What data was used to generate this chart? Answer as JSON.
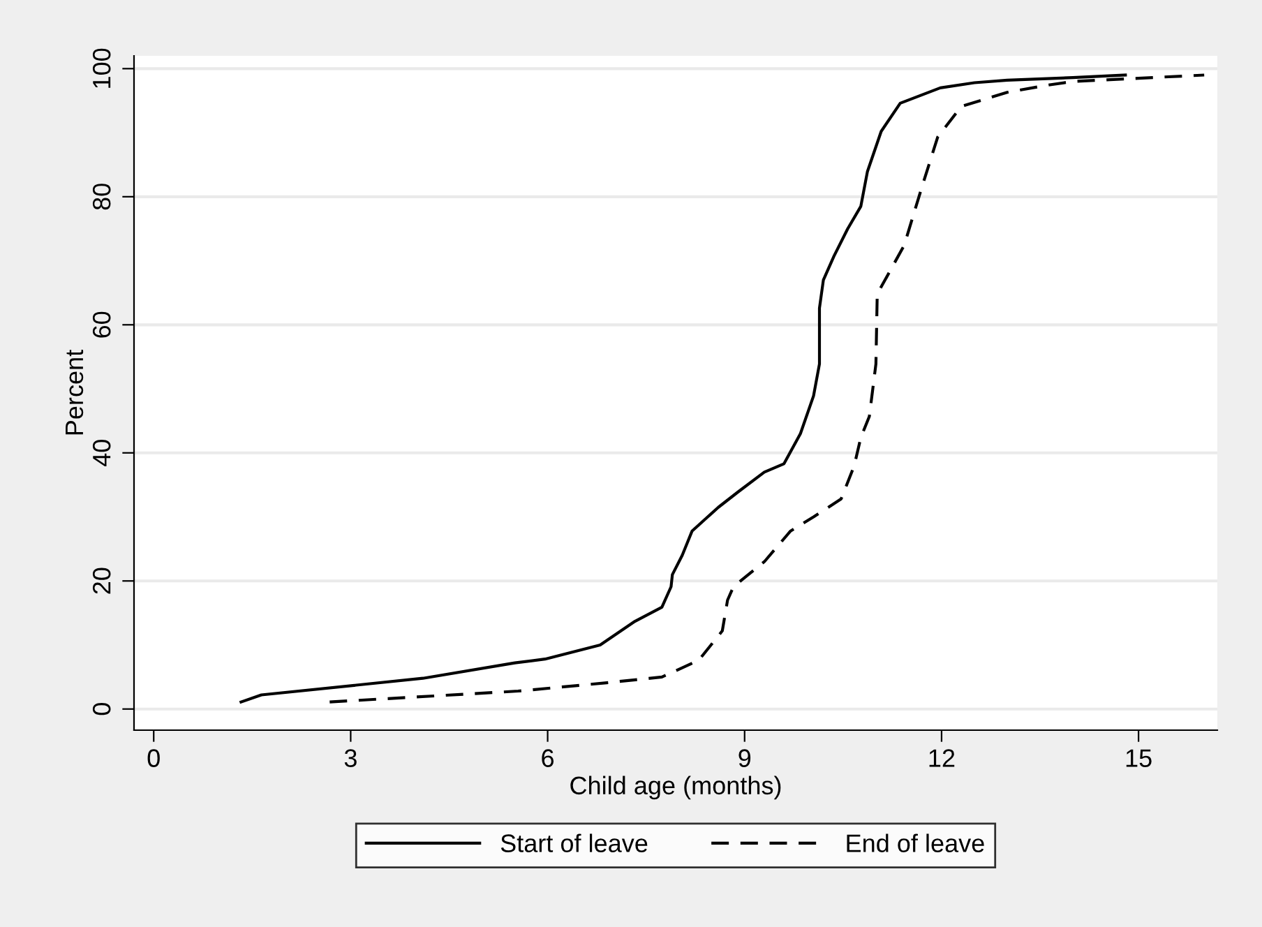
{
  "chart_data": {
    "type": "line",
    "xlabel": "Child age (months)",
    "ylabel": "Percent",
    "xlim": [
      -0.3,
      16.2
    ],
    "xticks": [
      0,
      3,
      6,
      9,
      12,
      15
    ],
    "ylim": [
      -3.3,
      102
    ],
    "yticks": [
      0,
      20,
      40,
      60,
      80,
      100
    ],
    "grid": "y",
    "legend": "bottom",
    "marker": "none",
    "series": [
      {
        "name": "Start of leave",
        "color": "#000000",
        "line_style": "solid",
        "x": [
          1.33,
          1.64,
          4.1,
          5.5,
          5.96,
          6.8,
          7.33,
          7.74,
          7.88,
          7.9,
          8.05,
          8.2,
          8.6,
          8.9,
          9.3,
          9.6,
          9.85,
          10.05,
          10.14,
          10.14,
          10.2,
          10.36,
          10.57,
          10.77,
          10.87,
          11.08,
          11.37,
          11.98,
          12.5,
          13,
          14,
          14.8
        ],
        "values": [
          1.1,
          2.2,
          4.8,
          7.2,
          7.8,
          10,
          13.7,
          15.9,
          19.1,
          21,
          24,
          27.8,
          31.5,
          33.9,
          37,
          38.3,
          43,
          48.9,
          53.9,
          62.6,
          67,
          70.7,
          75,
          78.5,
          83.9,
          90.2,
          94.6,
          97,
          97.8,
          98.2,
          98.6,
          99
        ]
      },
      {
        "name": "End of leave",
        "color": "#000000",
        "line_style": "dashed",
        "x": [
          2.68,
          5.55,
          6.9,
          7.74,
          8.3,
          8.66,
          8.74,
          8.83,
          9.3,
          9.7,
          10.05,
          10.47,
          10.67,
          10.77,
          10.9,
          11.0,
          11.02,
          11.43,
          11.7,
          11.94,
          12.3,
          13.0,
          13.6,
          14,
          15,
          16
        ],
        "values": [
          1.1,
          2.8,
          4.1,
          5,
          7.6,
          12.2,
          17,
          19.1,
          23,
          27.8,
          30,
          32.8,
          38,
          42.4,
          45.7,
          53.9,
          64.8,
          72.4,
          81.5,
          89.3,
          94.1,
          96.3,
          97.4,
          98,
          98.5,
          99
        ]
      }
    ]
  }
}
